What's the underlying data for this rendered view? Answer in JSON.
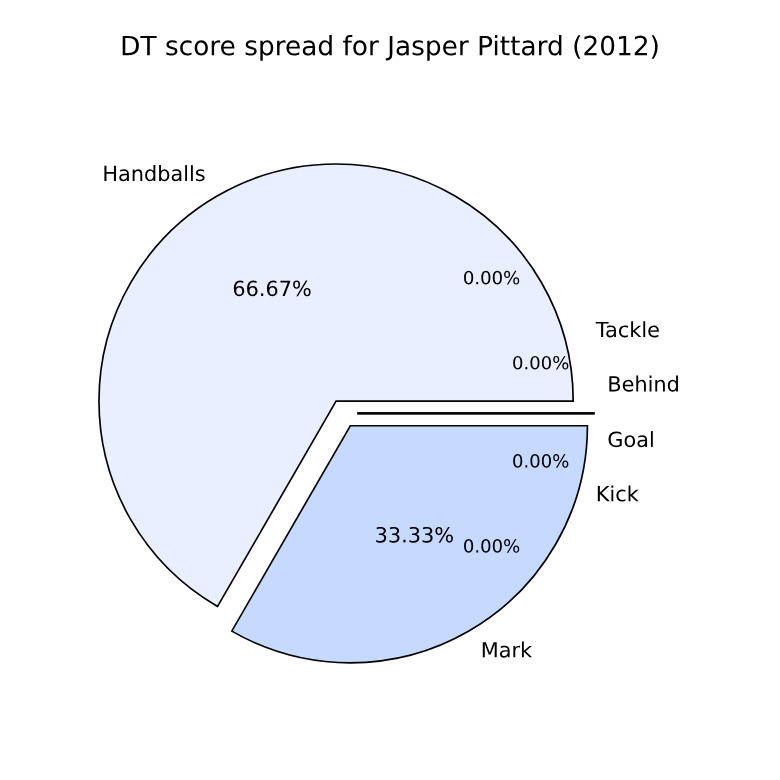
{
  "chart_data": {
    "type": "pie",
    "title": "DT score spread for Jasper Pittard (2012)",
    "categories": [
      "Handballs",
      "Mark",
      "Kick",
      "Goal",
      "Behind",
      "Tackle"
    ],
    "values": [
      66.67,
      33.33,
      0,
      0,
      0,
      0
    ],
    "colors": [
      "#e9efff",
      "#c6d9ff",
      "#a9c4ff",
      "#8cb0ff",
      "#6f9cff",
      "#5288ff"
    ],
    "value_labels": [
      "66.67%",
      "33.33%",
      "0.00%",
      "0.00%",
      "0.00%",
      "0.00%"
    ]
  }
}
